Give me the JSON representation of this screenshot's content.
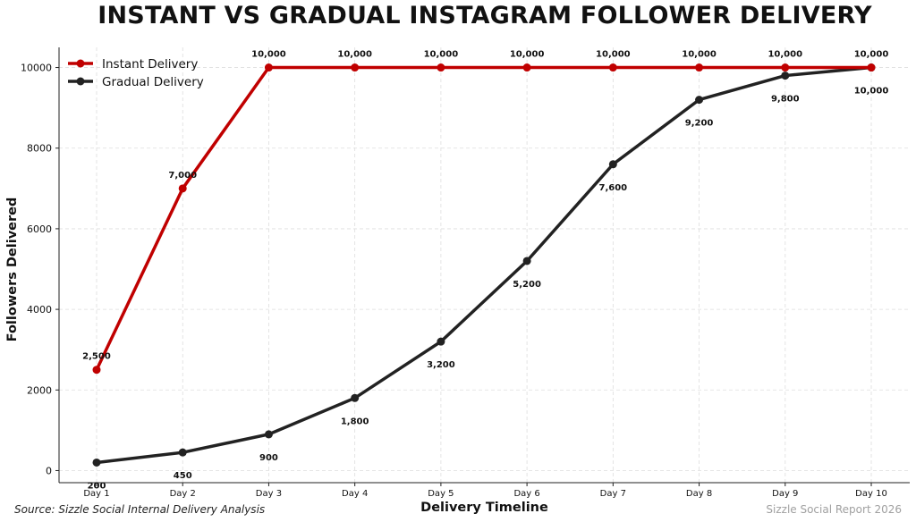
{
  "chart_data": {
    "type": "line",
    "title": "INSTANT VS GRADUAL INSTAGRAM FOLLOWER DELIVERY",
    "xlabel": "Delivery Timeline",
    "ylabel": "Followers Delivered",
    "categories": [
      "Day 1",
      "Day 2",
      "Day 3",
      "Day 4",
      "Day 5",
      "Day 6",
      "Day 7",
      "Day 8",
      "Day 9",
      "Day 10"
    ],
    "ylim": [
      -300,
      10500
    ],
    "yticks": [
      0,
      2000,
      4000,
      6000,
      8000,
      10000
    ],
    "grid": true,
    "legend_position": "top-left",
    "series": [
      {
        "name": "Instant Delivery",
        "color": "#c00000",
        "values": [
          2500,
          7000,
          10000,
          10000,
          10000,
          10000,
          10000,
          10000,
          10000,
          10000
        ],
        "labels": [
          "2,500",
          "7,000",
          "10,000",
          "10,000",
          "10,000",
          "10,000",
          "10,000",
          "10,000",
          "10,000",
          "10,000"
        ],
        "label_position": "above"
      },
      {
        "name": "Gradual Delivery",
        "color": "#222222",
        "values": [
          200,
          450,
          900,
          1800,
          3200,
          5200,
          7600,
          9200,
          9800,
          10000
        ],
        "labels": [
          "200",
          "450",
          "900",
          "1,800",
          "3,200",
          "5,200",
          "7,600",
          "9,200",
          "9,800",
          "10,000"
        ],
        "label_position": "below"
      }
    ]
  },
  "footer": {
    "source": "Source: Sizzle Social Internal Delivery Analysis",
    "brand": "Sizzle Social Report 2026"
  }
}
